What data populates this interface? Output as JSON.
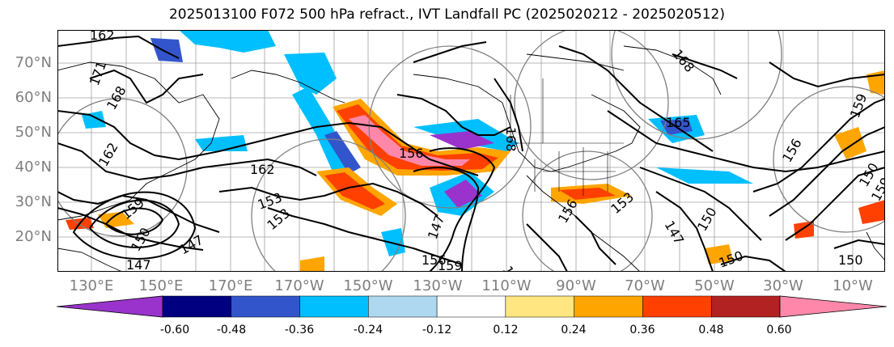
{
  "title": "2025013100 F072 500 hPa refract., IVT Landfall PC (2025020212 - 2025020512)",
  "lat_labels": [
    "70°N",
    "60°N",
    "50°N",
    "40°N",
    "30°N",
    "20°N"
  ],
  "lon_labels": [
    "130°E",
    "150°E",
    "170°E",
    "170°W",
    "150°W",
    "130°W",
    "110°W",
    "90°W",
    "70°W",
    "50°W",
    "30°W",
    "10°W"
  ],
  "contour_labels": [
    "162",
    "171",
    "168",
    "162",
    "162",
    "159",
    "153",
    "153",
    "147",
    "150",
    "147",
    "147",
    "156",
    "156",
    "159",
    "168",
    "168",
    "165",
    "156",
    "159",
    "150",
    "156",
    "153",
    "147",
    "150",
    "150",
    "150",
    "159",
    "150"
  ],
  "colorbar": {
    "ticks": [
      "-0.60",
      "-0.48",
      "-0.36",
      "-0.24",
      "-0.12",
      "0.12",
      "0.24",
      "0.36",
      "0.48",
      "0.60"
    ],
    "colors": [
      "#9933cc",
      "#000080",
      "#3355cc",
      "#00bfff",
      "#add8f0",
      "#ffffff",
      "#ffe680",
      "#ffa500",
      "#ff4000",
      "#b22222",
      "#ff88aa"
    ]
  },
  "colors": {
    "axis_label": "#7f7f7f",
    "contour": "#000000",
    "grid": "#a0a0a0"
  }
}
